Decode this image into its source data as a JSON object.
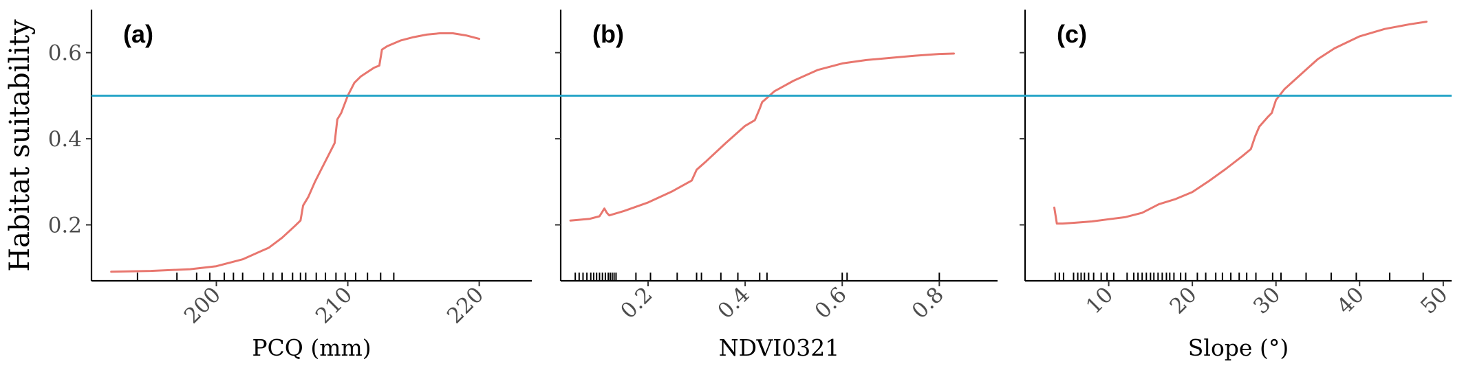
{
  "figure": {
    "ylabel": "Habitat suitability",
    "threshold": 0.5,
    "threshold_color": "#2aa6c8",
    "curve_color": "#e8766e",
    "axis_color": "#000000"
  },
  "chart_data": [
    {
      "type": "line",
      "panel_label": "(a)",
      "xlabel": "PCQ (mm)",
      "ylabel": "Habitat suitability",
      "xlim": [
        190.5,
        224
      ],
      "ylim": [
        0.07,
        0.7
      ],
      "xticks": [
        200,
        210,
        220
      ],
      "xtick_labels": [
        "200",
        "210",
        "220"
      ],
      "yticks": [
        0.2,
        0.4,
        0.6
      ],
      "ytick_labels": [
        "0.2",
        "0.4",
        "0.6"
      ],
      "show_yticklabels": true,
      "hline": 0.5,
      "series": [
        {
          "x": [
            192,
            195,
            198,
            200,
            202,
            204,
            205,
            206,
            206.4,
            206.6,
            207,
            207.5,
            208,
            208.5,
            209,
            209.2,
            209.5,
            210,
            210.5,
            211,
            211.5,
            212,
            212.4,
            212.6,
            213,
            214,
            215,
            216,
            217,
            218,
            219,
            220
          ],
          "y": [
            0.091,
            0.093,
            0.097,
            0.104,
            0.12,
            0.147,
            0.17,
            0.198,
            0.21,
            0.245,
            0.265,
            0.3,
            0.33,
            0.36,
            0.39,
            0.445,
            0.46,
            0.5,
            0.53,
            0.545,
            0.555,
            0.565,
            0.57,
            0.607,
            0.615,
            0.628,
            0.636,
            0.642,
            0.645,
            0.645,
            0.64,
            0.632
          ]
        }
      ],
      "rug": [
        190.5,
        194,
        197,
        198.5,
        199.5,
        200.6,
        201.3,
        202,
        203.6,
        204.3,
        205,
        205.8,
        206.4,
        206.8,
        207.6,
        208.3,
        209.1,
        209.8,
        210.6,
        211.5,
        212.5,
        213.5
      ]
    },
    {
      "type": "line",
      "panel_label": "(b)",
      "xlabel": "NDVI0321",
      "ylabel": "",
      "xlim": [
        0.02,
        0.92
      ],
      "ylim": [
        0.07,
        0.7
      ],
      "xticks": [
        0.2,
        0.4,
        0.6,
        0.8
      ],
      "xtick_labels": [
        "0.2",
        "0.4",
        "0.6",
        "0.8"
      ],
      "yticks": [
        0.2,
        0.4,
        0.6
      ],
      "ytick_labels": [
        "",
        "",
        ""
      ],
      "show_yticklabels": false,
      "hline": 0.5,
      "series": [
        {
          "x": [
            0.04,
            0.06,
            0.08,
            0.1,
            0.11,
            0.115,
            0.12,
            0.15,
            0.2,
            0.25,
            0.29,
            0.3,
            0.32,
            0.36,
            0.4,
            0.42,
            0.43,
            0.435,
            0.44,
            0.46,
            0.5,
            0.55,
            0.6,
            0.65,
            0.7,
            0.75,
            0.8,
            0.83
          ],
          "y": [
            0.21,
            0.212,
            0.214,
            0.22,
            0.238,
            0.228,
            0.222,
            0.232,
            0.252,
            0.278,
            0.303,
            0.328,
            0.348,
            0.39,
            0.43,
            0.443,
            0.47,
            0.485,
            0.49,
            0.51,
            0.535,
            0.56,
            0.575,
            0.583,
            0.588,
            0.593,
            0.597,
            0.598
          ]
        }
      ],
      "rug": [
        0.05,
        0.058,
        0.066,
        0.074,
        0.082,
        0.088,
        0.094,
        0.1,
        0.106,
        0.112,
        0.118,
        0.122,
        0.126,
        0.13,
        0.134,
        0.175,
        0.205,
        0.26,
        0.3,
        0.31,
        0.35,
        0.385,
        0.43,
        0.445,
        0.6,
        0.61,
        0.8
      ]
    },
    {
      "type": "line",
      "panel_label": "(c)",
      "xlabel": "Slope (°)",
      "ylabel": "",
      "xlim": [
        0,
        51
      ],
      "ylim": [
        0.07,
        0.7
      ],
      "xticks": [
        10,
        20,
        30,
        40,
        50
      ],
      "xtick_labels": [
        "10",
        "20",
        "30",
        "40",
        "50"
      ],
      "yticks": [
        0.2,
        0.4,
        0.6
      ],
      "ytick_labels": [
        "",
        "",
        ""
      ],
      "show_yticklabels": false,
      "hline": 0.5,
      "series": [
        {
          "x": [
            3.5,
            3.8,
            4.5,
            6,
            8,
            10,
            12,
            14,
            15,
            16,
            18,
            20,
            22,
            24,
            26,
            27,
            27.5,
            28,
            29,
            29.5,
            30,
            31,
            33,
            35,
            37,
            40,
            43,
            46,
            48
          ],
          "y": [
            0.24,
            0.203,
            0.203,
            0.205,
            0.208,
            0.213,
            0.218,
            0.228,
            0.238,
            0.248,
            0.26,
            0.276,
            0.302,
            0.33,
            0.36,
            0.376,
            0.405,
            0.428,
            0.45,
            0.46,
            0.49,
            0.515,
            0.55,
            0.585,
            0.61,
            0.638,
            0.655,
            0.666,
            0.672
          ]
        }
      ],
      "rug": [
        3.6,
        4.1,
        4.6,
        5.8,
        6.3,
        6.7,
        7.1,
        7.6,
        8.2,
        9.1,
        9.8,
        10.6,
        12.2,
        13.0,
        13.5,
        14.0,
        14.5,
        15.0,
        15.4,
        15.9,
        16.4,
        16.9,
        17.3,
        17.8,
        18.6,
        19.2,
        20.6,
        21.6,
        22.8,
        23.6,
        24.6,
        25.6,
        26.5,
        27.6,
        29.6,
        30.6,
        33.6,
        36.6,
        39.6,
        43.6,
        47.6
      ]
    }
  ]
}
